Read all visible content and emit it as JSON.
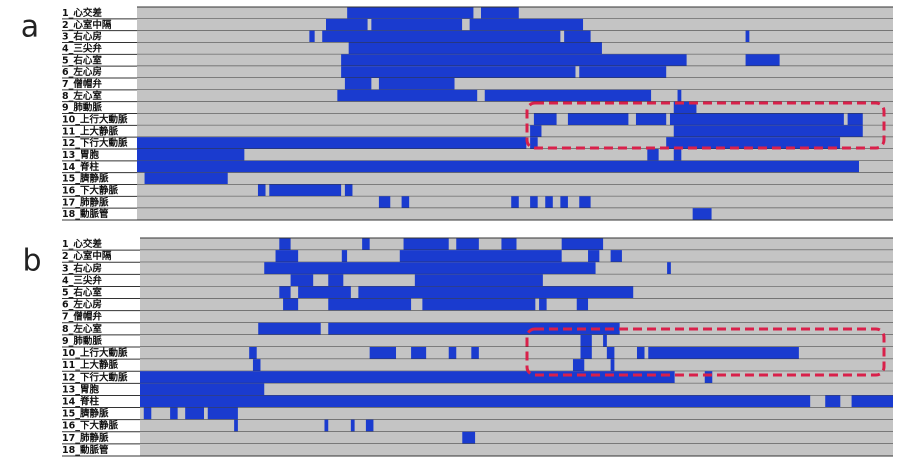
{
  "chart_data": [
    {
      "type": "timeline",
      "label": "a",
      "color": "#1a3bcf",
      "background": "#c4c4c4",
      "xlim": [
        0,
        100
      ],
      "categories": [
        "1_心交差",
        "2_心室中隔",
        "3_右心房",
        "4_三尖弁",
        "5_右心室",
        "6_左心房",
        "7_僧帽弁",
        "8_左心室",
        "9_肺動脈",
        "10_上行大動脈",
        "11_上大静脈",
        "12_下行大動脈",
        "13_胃胞",
        "14_脊柱",
        "15_臍静脈",
        "16_下大静脈",
        "17_肺静脈",
        "18_動脈管"
      ],
      "segments": [
        [
          [
            27.8,
            44.5
          ],
          [
            45.5,
            50.5
          ]
        ],
        [
          [
            25,
            30.5
          ],
          [
            31,
            43
          ],
          [
            44,
            59
          ]
        ],
        [
          [
            22.8,
            23.5
          ],
          [
            24.5,
            56
          ],
          [
            56.5,
            60
          ],
          [
            80.5,
            81
          ]
        ],
        [
          [
            28,
            61.5
          ]
        ],
        [
          [
            27,
            72.7
          ],
          [
            80.5,
            85
          ]
        ],
        [
          [
            27,
            58
          ],
          [
            58.5,
            70
          ]
        ],
        [
          [
            27.5,
            31
          ],
          [
            32,
            42
          ]
        ],
        [
          [
            26.5,
            45
          ],
          [
            46,
            68
          ],
          [
            71.5,
            72
          ]
        ],
        [
          [
            71,
            74
          ]
        ],
        [
          [
            52.5,
            55.5
          ],
          [
            57,
            65
          ],
          [
            66,
            70
          ],
          [
            70.5,
            93.5
          ],
          [
            94,
            96
          ]
        ],
        [
          [
            52,
            53.5
          ],
          [
            71,
            96
          ]
        ],
        [
          [
            0,
            51.5
          ],
          [
            52,
            53
          ],
          [
            70,
            93
          ]
        ],
        [
          [
            0,
            14.2
          ],
          [
            67.5,
            69
          ],
          [
            71,
            72
          ]
        ],
        [
          [
            0,
            95.5
          ]
        ],
        [
          [
            1,
            12
          ]
        ],
        [
          [
            16,
            17
          ],
          [
            17.5,
            27
          ],
          [
            27.5,
            28.5
          ]
        ],
        [
          [
            32,
            33.5
          ],
          [
            35,
            36
          ],
          [
            49.5,
            50.5
          ],
          [
            52,
            53
          ],
          [
            54,
            55
          ],
          [
            56,
            57
          ],
          [
            58.5,
            60
          ]
        ],
        [
          [
            73.5,
            76
          ]
        ]
      ]
    },
    {
      "type": "timeline",
      "label": "b",
      "color": "#1a3bcf",
      "background": "#c4c4c4",
      "xlim": [
        0,
        100
      ],
      "categories": [
        "1_心交差",
        "2_心室中隔",
        "3_右心房",
        "4_三尖弁",
        "5_右心室",
        "6_左心房",
        "7_僧帽弁",
        "8_左心室",
        "9_肺動脈",
        "10_上行大動脈",
        "11_上大静脈",
        "12_下行大動脈",
        "13_胃胞",
        "14_脊柱",
        "15_臍静脈",
        "16_下大静脈",
        "17_肺静脈",
        "18_動脈管"
      ],
      "segments": [
        [
          [
            18.5,
            20
          ],
          [
            29.5,
            30.5
          ],
          [
            35,
            41
          ],
          [
            42,
            45
          ],
          [
            48,
            50
          ],
          [
            56,
            61.5
          ]
        ],
        [
          [
            18,
            21
          ],
          [
            26.8,
            27.5
          ],
          [
            34.5,
            56
          ],
          [
            59.5,
            61
          ],
          [
            62.5,
            64
          ]
        ],
        [
          [
            16.5,
            60.5
          ],
          [
            70,
            70.5
          ]
        ],
        [
          [
            20,
            23
          ],
          [
            25,
            27
          ],
          [
            36.5,
            53.5
          ]
        ],
        [
          [
            18.5,
            20
          ],
          [
            21,
            28
          ],
          [
            29,
            65.5
          ]
        ],
        [
          [
            19,
            21
          ],
          [
            25,
            36
          ],
          [
            37.5,
            52.5
          ],
          [
            53,
            54
          ],
          [
            58,
            59.5
          ]
        ],
        [],
        [
          [
            15.7,
            24
          ],
          [
            25,
            63.7
          ]
        ],
        [
          [
            58.5,
            60
          ],
          [
            61.5,
            62
          ]
        ],
        [
          [
            14.5,
            15.5
          ],
          [
            30.5,
            34
          ],
          [
            36,
            38
          ],
          [
            41,
            42
          ],
          [
            44,
            45
          ],
          [
            58.5,
            60
          ],
          [
            62,
            63
          ],
          [
            66,
            67
          ],
          [
            67.5,
            87.5
          ]
        ],
        [
          [
            15,
            16
          ],
          [
            57.5,
            59
          ],
          [
            62.5,
            63
          ]
        ],
        [
          [
            0,
            71
          ],
          [
            75,
            76
          ]
        ],
        [
          [
            0,
            16.5
          ]
        ],
        [
          [
            0,
            89
          ],
          [
            91,
            93
          ],
          [
            94.5,
            100
          ]
        ],
        [
          [
            0.5,
            1.5
          ],
          [
            4,
            5
          ],
          [
            6,
            8.5
          ],
          [
            9,
            13
          ]
        ],
        [
          [
            12.5,
            13
          ],
          [
            24.5,
            25
          ],
          [
            28,
            28.5
          ],
          [
            30,
            31
          ]
        ],
        [
          [
            42.8,
            44.5
          ]
        ],
        []
      ]
    }
  ]
}
